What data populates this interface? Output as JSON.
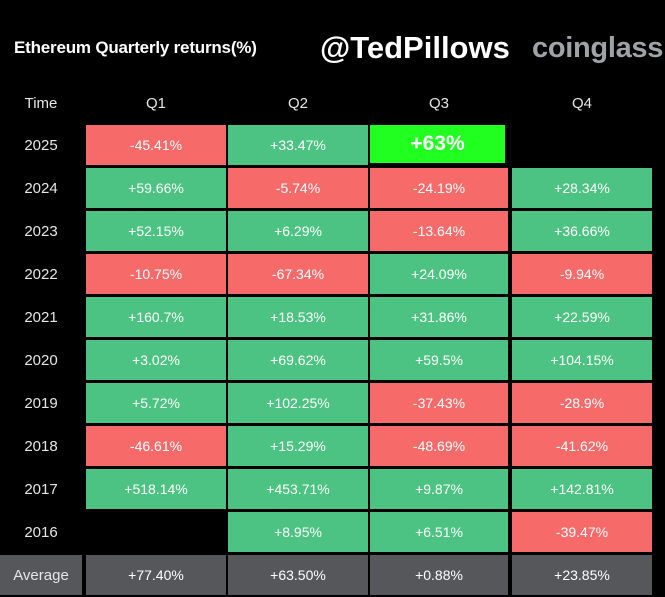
{
  "header": {
    "title": "Ethereum Quarterly returns(%)",
    "handle": "@TedPillows",
    "brand": "coinglass"
  },
  "colors": {
    "positive": "#4cc382",
    "negative": "#f66a6a",
    "highlight": "#21ff21",
    "average": "#56575b",
    "background": "#000000"
  },
  "chart_data": {
    "type": "table",
    "title": "Ethereum Quarterly returns(%)",
    "columns": [
      "Time",
      "Q1",
      "Q2",
      "Q3",
      "Q4"
    ],
    "rows": [
      {
        "time": "2025",
        "values": [
          "-45.41%",
          "+33.47%",
          "+63%",
          ""
        ],
        "highlight": [
          false,
          false,
          true,
          false
        ]
      },
      {
        "time": "2024",
        "values": [
          "+59.66%",
          "-5.74%",
          "-24.19%",
          "+28.34%"
        ]
      },
      {
        "time": "2023",
        "values": [
          "+52.15%",
          "+6.29%",
          "-13.64%",
          "+36.66%"
        ]
      },
      {
        "time": "2022",
        "values": [
          "-10.75%",
          "-67.34%",
          "+24.09%",
          "-9.94%"
        ]
      },
      {
        "time": "2021",
        "values": [
          "+160.7%",
          "+18.53%",
          "+31.86%",
          "+22.59%"
        ]
      },
      {
        "time": "2020",
        "values": [
          "+3.02%",
          "+69.62%",
          "+59.5%",
          "+104.15%"
        ]
      },
      {
        "time": "2019",
        "values": [
          "+5.72%",
          "+102.25%",
          "-37.43%",
          "-28.9%"
        ]
      },
      {
        "time": "2018",
        "values": [
          "-46.61%",
          "+15.29%",
          "-48.69%",
          "-41.62%"
        ]
      },
      {
        "time": "2017",
        "values": [
          "+518.14%",
          "+453.71%",
          "+9.87%",
          "+142.81%"
        ]
      },
      {
        "time": "2016",
        "values": [
          "",
          "+8.95%",
          "+6.51%",
          "-39.47%"
        ]
      }
    ],
    "average": {
      "label": "Average",
      "values": [
        "+77.40%",
        "+63.50%",
        "+0.88%",
        "+23.85%"
      ]
    }
  }
}
